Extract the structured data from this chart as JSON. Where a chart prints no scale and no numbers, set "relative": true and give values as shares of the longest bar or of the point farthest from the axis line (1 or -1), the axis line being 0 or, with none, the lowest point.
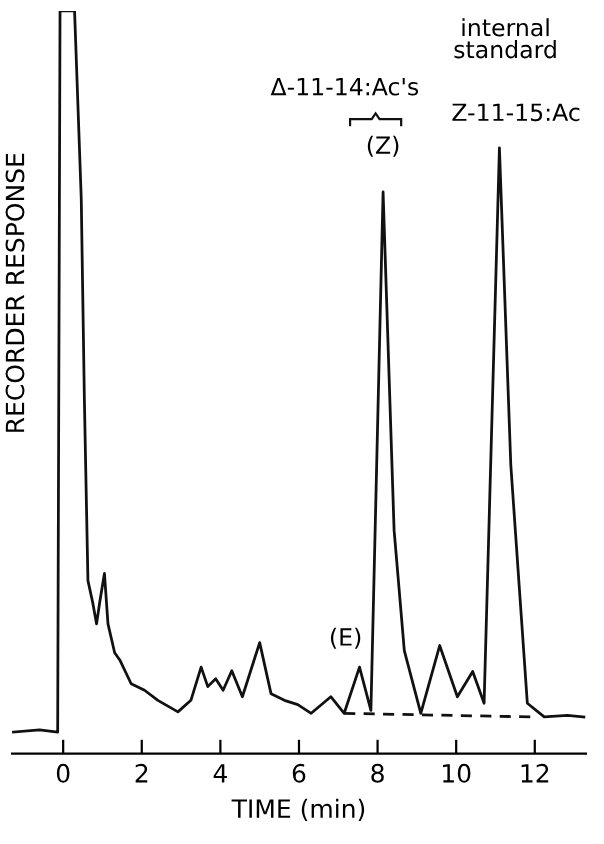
{
  "chart_data": {
    "type": "line",
    "relative": true,
    "xlabel": "TIME (min)",
    "ylabel": "RECORDER RESPONSE",
    "xlim": [
      -1.3,
      13.3
    ],
    "xticks": [
      0,
      2,
      4,
      6,
      8,
      10,
      12
    ],
    "grid": false,
    "legend": false,
    "series": [
      {
        "color": "#111111",
        "line_style": "solid",
        "x": [
          -1.27,
          -0.6,
          -0.14,
          -0.08,
          0.29,
          0.46,
          0.54,
          0.63,
          0.75,
          0.85,
          0.93,
          1.05,
          1.14,
          1.31,
          1.44,
          1.73,
          2.07,
          2.41,
          2.92,
          3.25,
          3.51,
          3.68,
          3.88,
          4.07,
          4.29,
          4.56,
          5.0,
          5.29,
          5.63,
          5.97,
          6.31,
          6.81,
          7.15,
          7.54,
          7.83,
          8.14,
          8.42,
          8.68,
          9.1,
          9.58,
          10.03,
          10.42,
          10.71,
          11.1,
          11.39,
          11.81,
          12.24,
          12.83,
          13.25
        ],
        "values": [
          0,
          0.003,
          0,
          1.0,
          1.0,
          0.74,
          0.46,
          0.21,
          0.18,
          0.15,
          0.18,
          0.22,
          0.15,
          0.11,
          0.1,
          0.067,
          0.058,
          0.044,
          0.028,
          0.044,
          0.09,
          0.063,
          0.074,
          0.058,
          0.085,
          0.049,
          0.124,
          0.053,
          0.044,
          0.038,
          0.026,
          0.049,
          0.026,
          0.09,
          0.03,
          0.749,
          0.28,
          0.113,
          0.026,
          0.12,
          0.049,
          0.084,
          0.04,
          0.81,
          0.37,
          0.04,
          0.021,
          0.023,
          0.021
        ]
      },
      {
        "color": "#111111",
        "line_style": "dashed",
        "x": [
          7.15,
          11.9
        ],
        "values": [
          0.026,
          0.021
        ]
      }
    ],
    "annotations": [
      "internal standard",
      "Δ-11-14:Ac's",
      {
        "text": "(Z)",
        "x": 8.14,
        "y": 0.749
      },
      {
        "text": "(E)",
        "x": 7.54,
        "y": 0.09
      },
      {
        "text": "Z-11-15:Ac",
        "x": 11.1,
        "y": 0.81
      }
    ]
  }
}
